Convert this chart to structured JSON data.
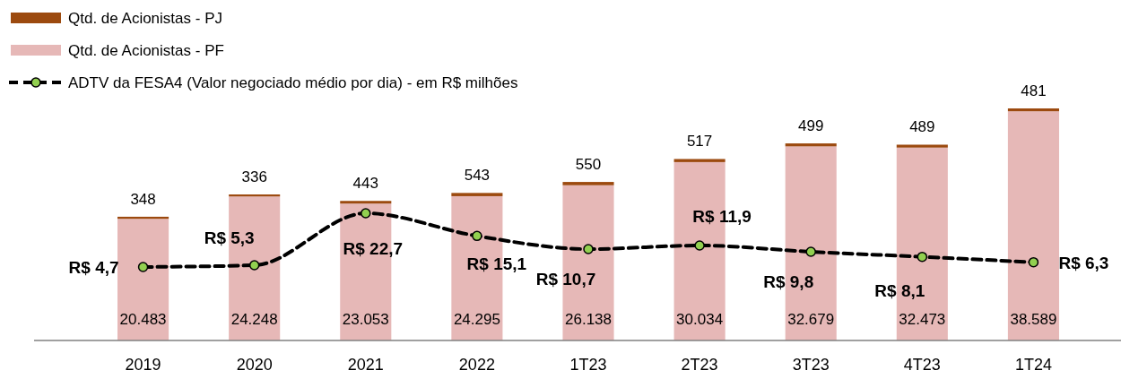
{
  "chart_data": {
    "type": "bar",
    "stacked": true,
    "legend": "top left",
    "marker": "circle",
    "line_style": "dashed",
    "categories": [
      "2019",
      "2020",
      "2021",
      "2022",
      "1T23",
      "2T23",
      "3T23",
      "4T23",
      "1T24"
    ],
    "series": [
      {
        "name": "Qtd. de Acionistas - PF",
        "color": "#e6b8b7",
        "values": [
          20483,
          24248,
          23053,
          24295,
          26138,
          30034,
          32679,
          32473,
          38589
        ],
        "value_labels": [
          "20.483",
          "24.248",
          "23.053",
          "24.295",
          "26.138",
          "30.034",
          "32.679",
          "32.473",
          "38.589"
        ]
      },
      {
        "name": "Qtd. de Acionistas - PJ",
        "color": "#9c4a0f",
        "values": [
          348,
          336,
          443,
          543,
          550,
          517,
          499,
          489,
          481
        ],
        "value_labels": [
          "348",
          "336",
          "443",
          "543",
          "550",
          "517",
          "499",
          "489",
          "481"
        ]
      },
      {
        "name": "ADTV da FESA4 (Valor negociado médio por dia) - em R$ milhões",
        "type": "line",
        "axis": "y2",
        "color": "#000000",
        "values": [
          4.7,
          5.3,
          22.7,
          15.1,
          10.7,
          11.9,
          9.8,
          8.1,
          6.3
        ],
        "value_labels": [
          "R$ 4,7",
          "R$ 5,3",
          "R$ 22,7",
          "R$ 15,1",
          "R$ 10,7",
          "R$ 11,9",
          "R$ 9,8",
          "R$ 8,1",
          "R$ 6,3"
        ]
      }
    ]
  }
}
